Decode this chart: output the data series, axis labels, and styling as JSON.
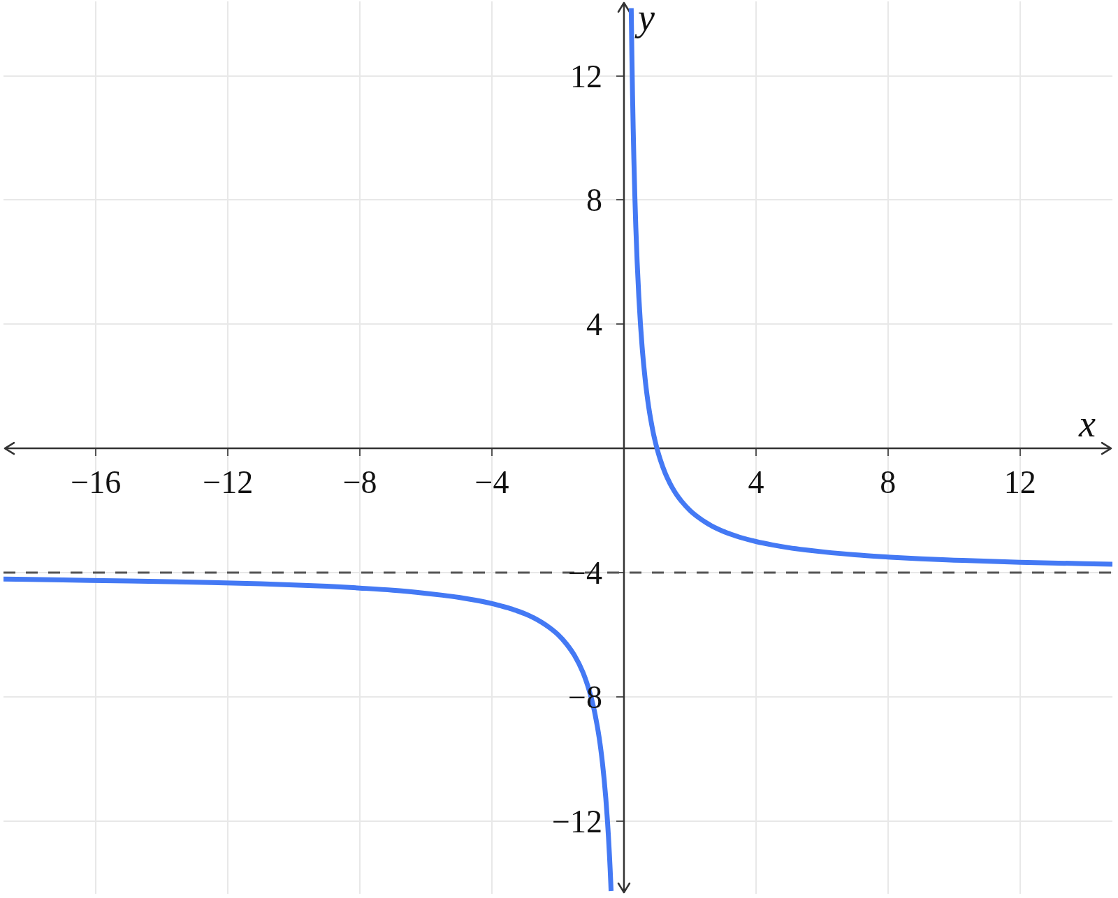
{
  "chart_data": {
    "type": "line",
    "xlabel": "x",
    "ylabel": "y",
    "series": [
      {
        "color": "#4479f4",
        "x": [
          -18.8,
          -17,
          -15,
          -13,
          -11,
          -9,
          -8,
          -7,
          -6,
          -5.5,
          -5,
          -4.5,
          -4,
          -3.75,
          -3.5,
          -3.25,
          -3,
          -2.75,
          -2.5,
          -2.25,
          -2,
          -1.75,
          -1.5,
          -1.25,
          -1.1,
          -1,
          -0.95,
          -0.9,
          -0.85,
          -0.8,
          -0.75,
          -0.7,
          -0.65,
          -0.6,
          -0.55,
          -0.5,
          -0.47,
          -0.44,
          -0.42,
          -0.4,
          -0.39
        ],
        "values": [
          -4.21,
          -4.24,
          -4.27,
          -4.31,
          -4.36,
          -4.44,
          -4.5,
          -4.57,
          -4.67,
          -4.73,
          -4.8,
          -4.89,
          -5,
          -5.07,
          -5.14,
          -5.23,
          -5.33,
          -5.45,
          -5.6,
          -5.78,
          -6,
          -6.29,
          -6.67,
          -7.2,
          -7.64,
          -8,
          -8.21,
          -8.44,
          -8.71,
          -9,
          -9.33,
          -9.71,
          -10.15,
          -10.67,
          -11.27,
          -12,
          -12.51,
          -13.09,
          -13.52,
          -14,
          -14.26
        ]
      },
      {
        "color": "#4479f4",
        "x": [
          0.22,
          0.24,
          0.26,
          0.28,
          0.3,
          0.33,
          0.36,
          0.4,
          0.45,
          0.5,
          0.55,
          0.6,
          0.65,
          0.7,
          0.75,
          0.8,
          0.85,
          0.9,
          0.95,
          1,
          1.1,
          1.25,
          1.4,
          1.5,
          1.6,
          1.75,
          2,
          2.25,
          2.5,
          2.75,
          3,
          3.25,
          3.5,
          4,
          4.5,
          5,
          5.5,
          6,
          7,
          8,
          9,
          10,
          12,
          14.8
        ],
        "values": [
          14.18,
          12.67,
          11.38,
          10.29,
          9.33,
          8.12,
          7.11,
          6,
          4.89,
          4,
          3.27,
          2.67,
          2.15,
          1.71,
          1.33,
          1,
          0.71,
          0.44,
          0.21,
          0,
          -0.36,
          -0.8,
          -1.14,
          -1.33,
          -1.5,
          -1.71,
          -2,
          -2.22,
          -2.4,
          -2.55,
          -2.67,
          -2.77,
          -2.86,
          -3,
          -3.11,
          -3.2,
          -3.27,
          -3.33,
          -3.43,
          -3.5,
          -3.56,
          -3.6,
          -3.67,
          -3.73
        ]
      }
    ],
    "xlim": [
      -18.8,
      14.8
    ],
    "ylim": [
      -14.35,
      14.4
    ],
    "xticks": [
      {
        "value": -16,
        "label": "−16"
      },
      {
        "value": -12,
        "label": "−12"
      },
      {
        "value": -8,
        "label": "−8"
      },
      {
        "value": -4,
        "label": "−4"
      },
      4,
      8,
      12
    ],
    "yticks": [
      {
        "value": -12,
        "label": "−12"
      },
      {
        "value": -8,
        "label": "−8"
      },
      {
        "value": -4,
        "label": "−4"
      },
      4,
      8,
      12
    ],
    "grid": true,
    "legend": false,
    "marker": "none",
    "line_style": "solid",
    "ref_lines": [
      {
        "axis": "y",
        "value": -4,
        "color": "#555555",
        "line_style": "dashed"
      }
    ]
  }
}
